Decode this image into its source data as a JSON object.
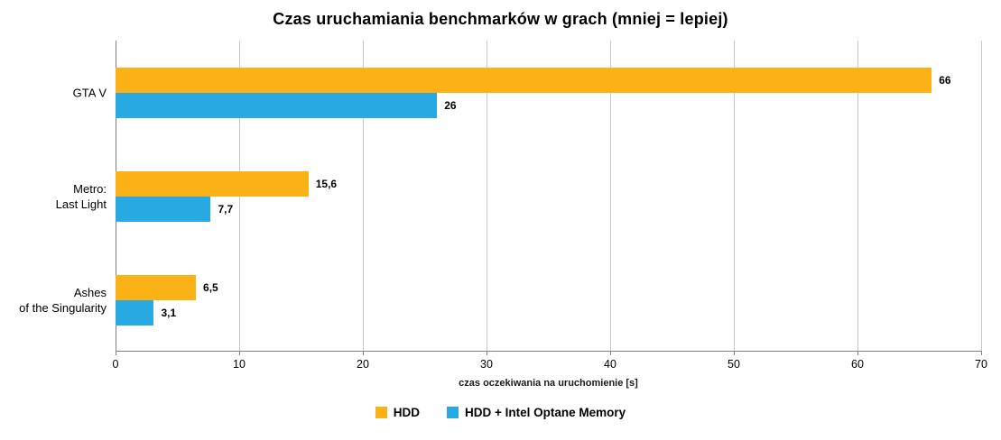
{
  "chart_data": {
    "type": "bar",
    "orientation": "horizontal",
    "title": "Czas uruchamiania benchmarków w grach (mniej = lepiej)",
    "xlabel": "czas oczekiwania na uruchomienie [s]",
    "categories": [
      [
        "GTA V"
      ],
      [
        "Metro:",
        "Last Light"
      ],
      [
        "Ashes",
        "of the Singularity"
      ]
    ],
    "series": [
      {
        "name": "HDD",
        "color": "#FBB217",
        "values": [
          66,
          15.6,
          6.5
        ],
        "value_labels": [
          "66",
          "15,6",
          "6,5"
        ]
      },
      {
        "name": "HDD + Intel Optane Memory",
        "color": "#29A9E1",
        "values": [
          26,
          7.7,
          3.1
        ],
        "value_labels": [
          "26",
          "7,7",
          "3,1"
        ]
      }
    ],
    "xlim": [
      0,
      70
    ],
    "xticks": [
      0,
      10,
      20,
      30,
      40,
      50,
      60,
      70
    ],
    "grid": true,
    "legend_position": "bottom",
    "colors": {
      "gridline": "#c9c9c9",
      "axis": "#7f7f7f",
      "background": "#ffffff"
    }
  }
}
